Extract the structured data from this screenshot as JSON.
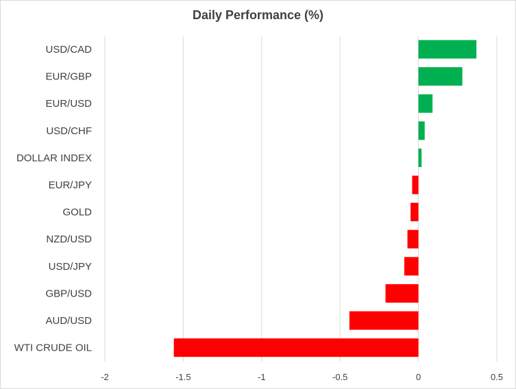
{
  "chart_data": {
    "type": "bar",
    "orientation": "horizontal",
    "title": "Daily Performance (%)",
    "xlabel": "",
    "ylabel": "",
    "categories": [
      "USD/CAD",
      "EUR/GBP",
      "EUR/USD",
      "USD/CHF",
      "DOLLAR INDEX",
      "EUR/JPY",
      "GOLD",
      "NZD/USD",
      "USD/JPY",
      "GBP/USD",
      "AUD/USD",
      "WTI CRUDE OIL"
    ],
    "values": [
      0.37,
      0.28,
      0.09,
      0.04,
      0.02,
      -0.04,
      -0.05,
      -0.07,
      -0.09,
      -0.21,
      -0.44,
      -1.56
    ],
    "xlim": [
      -2,
      0.5
    ],
    "xticks": [
      -2,
      -1.5,
      -1,
      -0.5,
      0,
      0.5
    ],
    "xtick_labels": [
      "-2",
      "-1.5",
      "-1",
      "-0.5",
      "0",
      "0.5"
    ],
    "grid": "vertical",
    "legend": "none",
    "colors": {
      "positive": "#00b050",
      "negative": "#ff0000",
      "grid": "#d9d9d9",
      "text": "#404040"
    }
  }
}
